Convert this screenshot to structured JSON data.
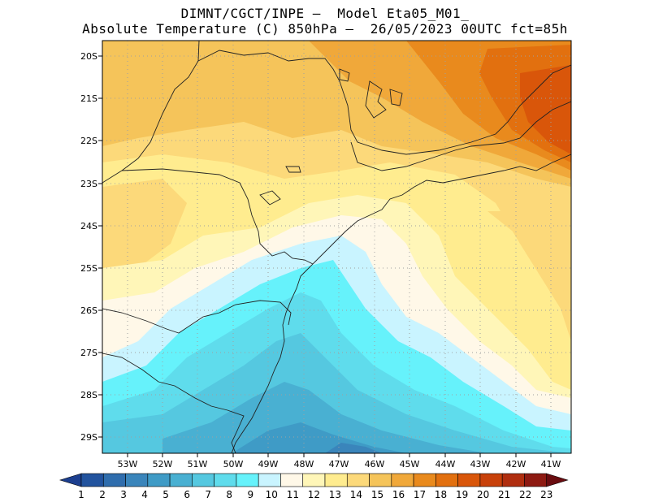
{
  "title": {
    "line1": "DIMNT/CGCT/INPE –  Model Eta05_M01_",
    "line2": "Absolute Temperature (C) 850hPa –  26/05/2023 00UTC fct=85h"
  },
  "map": {
    "variable": "Absolute Temperature",
    "units": "C",
    "level": "850hPa",
    "lat_labels": [
      "20S",
      "21S",
      "22S",
      "23S",
      "24S",
      "25S",
      "26S",
      "27S",
      "28S",
      "29S"
    ],
    "lon_labels": [
      "53W",
      "52W",
      "51W",
      "50W",
      "49W",
      "48W",
      "47W",
      "46W",
      "45W",
      "44W",
      "43W",
      "42W",
      "41W"
    ]
  },
  "colorbar": {
    "labels": [
      "1",
      "2",
      "3",
      "4",
      "5",
      "6",
      "7",
      "8",
      "9",
      "10",
      "11",
      "12",
      "13",
      "14",
      "15",
      "16",
      "17",
      "18",
      "19",
      "20",
      "21",
      "22",
      "23"
    ],
    "colors": [
      "#1c3f8f",
      "#22539e",
      "#2f6dad",
      "#3a85bb",
      "#3f9bc6",
      "#49b0d2",
      "#55c8e0",
      "#5fdcec",
      "#66f2fb",
      "#c9f4ff",
      "#fff8e8",
      "#fff6b8",
      "#ffec8f",
      "#fcd97a",
      "#f5c45a",
      "#f0a83a",
      "#e98a1d",
      "#e2700f",
      "#d9560a",
      "#c8410a",
      "#b02e0f",
      "#8e1a12",
      "#6a0c10"
    ]
  }
}
